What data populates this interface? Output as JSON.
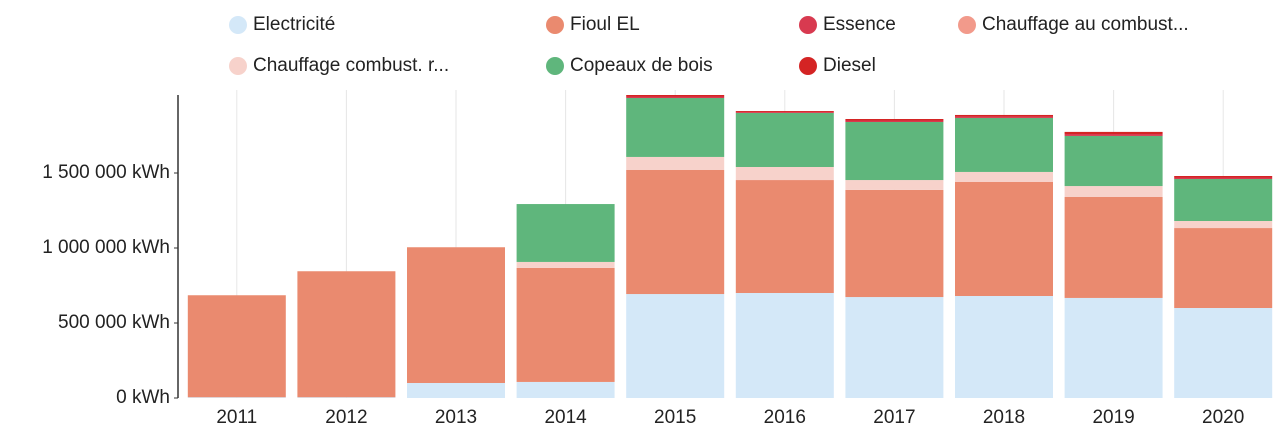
{
  "chart_data": {
    "type": "stacked_bar",
    "categories": [
      "2011",
      "2012",
      "2013",
      "2014",
      "2015",
      "2016",
      "2017",
      "2018",
      "2019",
      "2020"
    ],
    "series": [
      {
        "name": "Electricité",
        "color": "#d4e8f8",
        "values": [
          5000,
          5000,
          100000,
          107000,
          693000,
          700000,
          673000,
          680000,
          667000,
          600000
        ]
      },
      {
        "name": "Fioul EL",
        "color": "#ea8a6f",
        "values": [
          680000,
          840000,
          905000,
          760000,
          827000,
          753000,
          714000,
          760000,
          673000,
          533000
        ]
      },
      {
        "name": "Essence",
        "color": "#d83a50",
        "values": [
          0,
          0,
          0,
          0,
          10000,
          6000,
          10000,
          10000,
          13000,
          10000
        ]
      },
      {
        "name": "Chauffage au combust...",
        "color": "#f29a8b",
        "values": [
          0,
          0,
          0,
          0,
          0,
          0,
          0,
          0,
          0,
          0
        ]
      },
      {
        "name": "Chauffage combust. r...",
        "color": "#f7d2cb",
        "values": [
          0,
          0,
          0,
          40000,
          87000,
          87000,
          66000,
          67000,
          73000,
          47000
        ]
      },
      {
        "name": "Copeaux de bois",
        "color": "#5fb67c",
        "values": [
          0,
          0,
          0,
          386000,
          393000,
          360000,
          387000,
          360000,
          334000,
          280000
        ]
      },
      {
        "name": "Diesel",
        "color": "#d42424",
        "values": [
          0,
          0,
          0,
          0,
          10000,
          7000,
          10000,
          10000,
          14000,
          10000
        ]
      }
    ],
    "ylim": [
      0,
      2000000
    ],
    "yticks": [
      {
        "value": 0,
        "label": "0 kWh"
      },
      {
        "value": 500000,
        "label": "500 000 kWh"
      },
      {
        "value": 1000000,
        "label": "1 000 000 kWh"
      },
      {
        "value": 1500000,
        "label": "1 500 000 kWh"
      }
    ]
  }
}
